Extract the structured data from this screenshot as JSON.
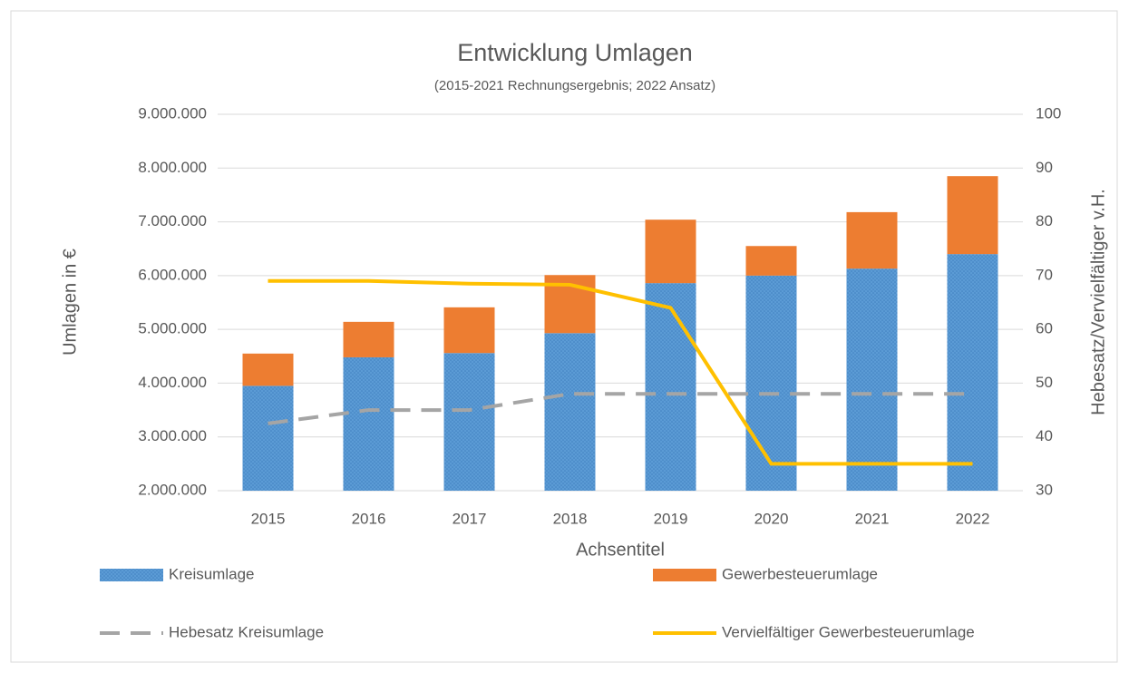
{
  "chart_data": {
    "type": "bar",
    "stacked": true,
    "title": "Entwicklung Umlagen",
    "subtitle": "(2015-2021 Rechnungsergebnis; 2022 Ansatz)",
    "x_label": "Achsentitel",
    "y_label": "Umlagen in €",
    "y2_label": "Hebesatz/Vervielfältiger v.H.",
    "categories": [
      "2015",
      "2016",
      "2017",
      "2018",
      "2019",
      "2020",
      "2021",
      "2022"
    ],
    "series": [
      {
        "name": "Kreisumlage",
        "type": "bar",
        "color": "#5b9bd5",
        "pattern": "dotted",
        "values": [
          3950000,
          4480000,
          4560000,
          4930000,
          5860000,
          6000000,
          6130000,
          6400000
        ]
      },
      {
        "name": "Gewerbesteuerumlage",
        "type": "bar",
        "color": "#ed7d31",
        "values": [
          600000,
          660000,
          850000,
          1080000,
          1180000,
          550000,
          1050000,
          1450000
        ]
      },
      {
        "name": "Hebesatz Kreisumlage",
        "type": "line",
        "axis": "y2",
        "color": "#a5a5a5",
        "style": "dashed",
        "values": [
          42.5,
          45,
          45,
          48,
          48,
          48,
          48,
          48
        ]
      },
      {
        "name": "Vervielfältiger Gewerbesteuerumlage",
        "type": "line",
        "axis": "y2",
        "color": "#ffc000",
        "style": "solid",
        "values": [
          69,
          69,
          68.5,
          68.3,
          64,
          35,
          35,
          35
        ]
      }
    ],
    "ylim": [
      2000000,
      9000000
    ],
    "yticks": [
      {
        "value": 2000000,
        "label": "2.000.000"
      },
      {
        "value": 3000000,
        "label": "3.000.000"
      },
      {
        "value": 4000000,
        "label": "4.000.000"
      },
      {
        "value": 5000000,
        "label": "5.000.000"
      },
      {
        "value": 6000000,
        "label": "6.000.000"
      },
      {
        "value": 7000000,
        "label": "7.000.000"
      },
      {
        "value": 8000000,
        "label": "8.000.000"
      },
      {
        "value": 9000000,
        "label": "9.000.000"
      }
    ],
    "y2lim": [
      30,
      100
    ],
    "y2ticks": [
      30,
      40,
      50,
      60,
      70,
      80,
      90,
      100
    ],
    "grid": true,
    "legend": "bottom"
  }
}
